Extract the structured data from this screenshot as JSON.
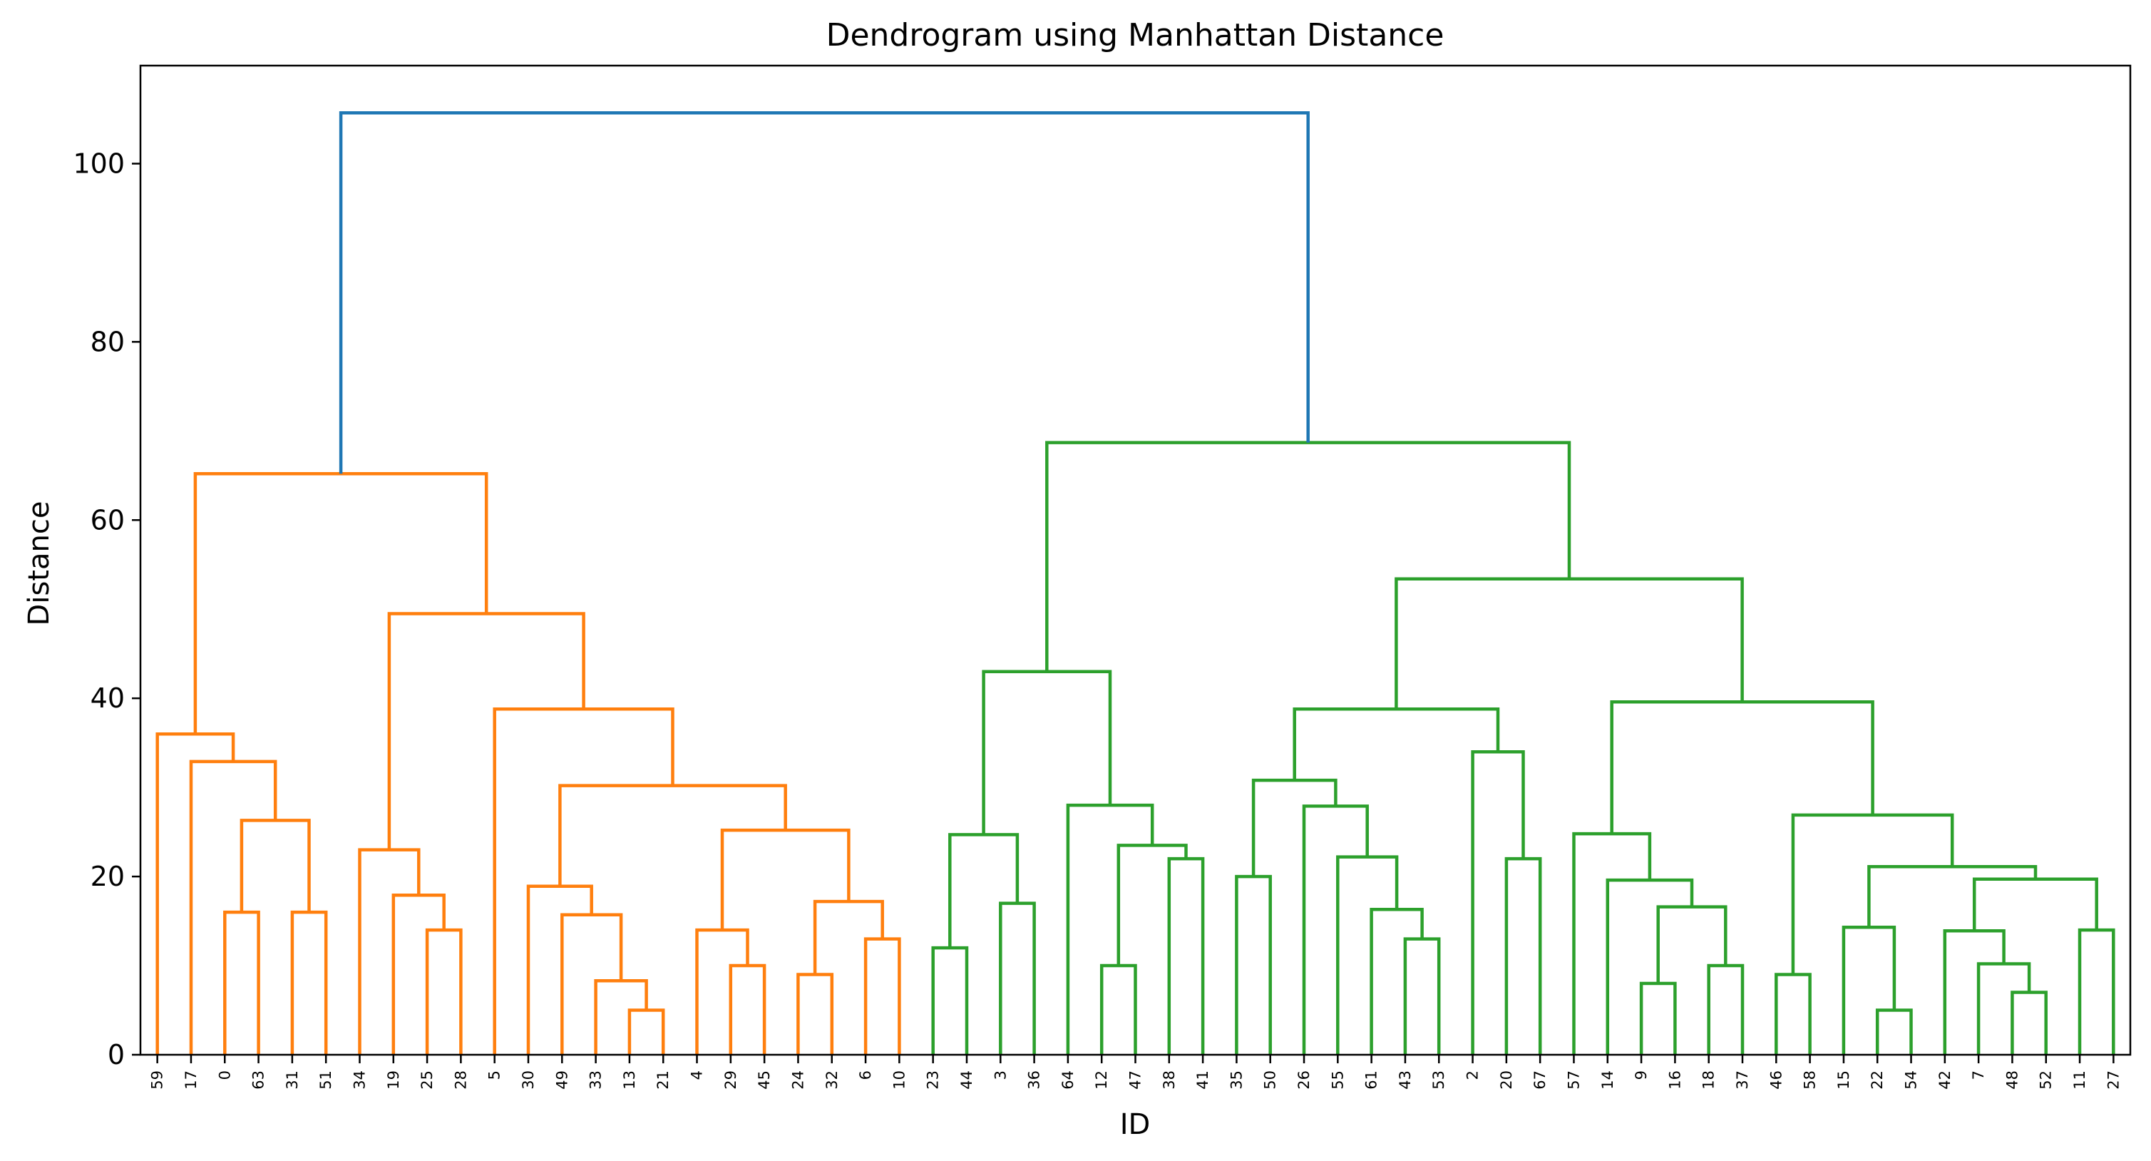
{
  "chart_data": {
    "type": "dendrogram",
    "title": "Dendrogram using Manhattan Distance",
    "xlabel": "ID",
    "ylabel": "Distance",
    "ylim": [
      0,
      111
    ],
    "yticks": [
      0,
      20,
      40,
      60,
      80,
      100
    ],
    "grid": false,
    "colors": {
      "cluster_1": "#ff7f0e",
      "cluster_2": "#2ca02c",
      "root": "#1f77b4"
    },
    "leaves": [
      "59",
      "17",
      "0",
      "63",
      "31",
      "51",
      "34",
      "19",
      "25",
      "28",
      "5",
      "30",
      "49",
      "33",
      "13",
      "21",
      "4",
      "29",
      "45",
      "24",
      "32",
      "6",
      "10",
      "23",
      "44",
      "3",
      "36",
      "64",
      "12",
      "47",
      "38",
      "41",
      "35",
      "50",
      "26",
      "55",
      "61",
      "43",
      "53",
      "2",
      "20",
      "67",
      "57",
      "14",
      "9",
      "16",
      "18",
      "37",
      "46",
      "58",
      "15",
      "22",
      "54",
      "42",
      "7",
      "48",
      "52",
      "11",
      "27"
    ],
    "merges": [
      {
        "id": "o1",
        "left": "0",
        "right": "63",
        "height": 16,
        "color": "cluster_1"
      },
      {
        "id": "o2",
        "left": "31",
        "right": "51",
        "height": 16,
        "color": "cluster_1"
      },
      {
        "id": "o3",
        "left": "o1",
        "right": "o2",
        "height": 26.3,
        "color": "cluster_1"
      },
      {
        "id": "o4",
        "left": "17",
        "right": "o3",
        "height": 32.9,
        "color": "cluster_1"
      },
      {
        "id": "o5",
        "left": "59",
        "right": "o4",
        "height": 36,
        "color": "cluster_1"
      },
      {
        "id": "o6",
        "left": "25",
        "right": "28",
        "height": 14,
        "color": "cluster_1"
      },
      {
        "id": "o7",
        "left": "19",
        "right": "o6",
        "height": 17.9,
        "color": "cluster_1"
      },
      {
        "id": "o8",
        "left": "34",
        "right": "o7",
        "height": 23,
        "color": "cluster_1"
      },
      {
        "id": "o9",
        "left": "13",
        "right": "21",
        "height": 5,
        "color": "cluster_1"
      },
      {
        "id": "o10",
        "left": "33",
        "right": "o9",
        "height": 8.3,
        "color": "cluster_1"
      },
      {
        "id": "o11",
        "left": "49",
        "right": "o10",
        "height": 15.7,
        "color": "cluster_1"
      },
      {
        "id": "o12",
        "left": "30",
        "right": "o11",
        "height": 18.9,
        "color": "cluster_1"
      },
      {
        "id": "o13",
        "left": "29",
        "right": "45",
        "height": 10,
        "color": "cluster_1"
      },
      {
        "id": "o14",
        "left": "4",
        "right": "o13",
        "height": 14,
        "color": "cluster_1"
      },
      {
        "id": "o15",
        "left": "24",
        "right": "32",
        "height": 9,
        "color": "cluster_1"
      },
      {
        "id": "o16",
        "left": "6",
        "right": "10",
        "height": 13,
        "color": "cluster_1"
      },
      {
        "id": "o17",
        "left": "o15",
        "right": "o16",
        "height": 17.2,
        "color": "cluster_1"
      },
      {
        "id": "o18",
        "left": "o14",
        "right": "o17",
        "height": 25.2,
        "color": "cluster_1"
      },
      {
        "id": "o19",
        "left": "o12",
        "right": "o18",
        "height": 30.2,
        "color": "cluster_1"
      },
      {
        "id": "o20",
        "left": "5",
        "right": "o19",
        "height": 38.8,
        "color": "cluster_1"
      },
      {
        "id": "o21",
        "left": "o8",
        "right": "o20",
        "height": 49.5,
        "color": "cluster_1"
      },
      {
        "id": "o22",
        "left": "o5",
        "right": "o21",
        "height": 65.2,
        "color": "cluster_1"
      },
      {
        "id": "g1",
        "left": "23",
        "right": "44",
        "height": 12,
        "color": "cluster_2"
      },
      {
        "id": "g2",
        "left": "3",
        "right": "36",
        "height": 17,
        "color": "cluster_2"
      },
      {
        "id": "g3",
        "left": "g1",
        "right": "g2",
        "height": 24.7,
        "color": "cluster_2"
      },
      {
        "id": "g4",
        "left": "12",
        "right": "47",
        "height": 10,
        "color": "cluster_2"
      },
      {
        "id": "g5",
        "left": "38",
        "right": "41",
        "height": 22,
        "color": "cluster_2"
      },
      {
        "id": "g6",
        "left": "g4",
        "right": "g5",
        "height": 23.5,
        "color": "cluster_2"
      },
      {
        "id": "g7",
        "left": "64",
        "right": "g6",
        "height": 28,
        "color": "cluster_2"
      },
      {
        "id": "g8",
        "left": "g3",
        "right": "g7",
        "height": 43,
        "color": "cluster_2"
      },
      {
        "id": "g9",
        "left": "35",
        "right": "50",
        "height": 20,
        "color": "cluster_2"
      },
      {
        "id": "g10",
        "left": "43",
        "right": "53",
        "height": 13,
        "color": "cluster_2"
      },
      {
        "id": "g11",
        "left": "61",
        "right": "g10",
        "height": 16.3,
        "color": "cluster_2"
      },
      {
        "id": "g12",
        "left": "55",
        "right": "g11",
        "height": 22.2,
        "color": "cluster_2"
      },
      {
        "id": "g13",
        "left": "26",
        "right": "g12",
        "height": 27.9,
        "color": "cluster_2"
      },
      {
        "id": "g14",
        "left": "g9",
        "right": "g13",
        "height": 30.8,
        "color": "cluster_2"
      },
      {
        "id": "g15",
        "left": "20",
        "right": "67",
        "height": 22,
        "color": "cluster_2"
      },
      {
        "id": "g16",
        "left": "2",
        "right": "g15",
        "height": 34,
        "color": "cluster_2"
      },
      {
        "id": "g17",
        "left": "g14",
        "right": "g16",
        "height": 38.8,
        "color": "cluster_2"
      },
      {
        "id": "g18",
        "left": "9",
        "right": "16",
        "height": 8,
        "color": "cluster_2"
      },
      {
        "id": "g19",
        "left": "18",
        "right": "37",
        "height": 10,
        "color": "cluster_2"
      },
      {
        "id": "g20",
        "left": "g18",
        "right": "g19",
        "height": 16.6,
        "color": "cluster_2"
      },
      {
        "id": "g21",
        "left": "14",
        "right": "g20",
        "height": 19.6,
        "color": "cluster_2"
      },
      {
        "id": "g22",
        "left": "57",
        "right": "g21",
        "height": 24.8,
        "color": "cluster_2"
      },
      {
        "id": "g23",
        "left": "46",
        "right": "58",
        "height": 9,
        "color": "cluster_2"
      },
      {
        "id": "g24",
        "left": "22",
        "right": "54",
        "height": 5,
        "color": "cluster_2"
      },
      {
        "id": "g25",
        "left": "15",
        "right": "g24",
        "height": 14.3,
        "color": "cluster_2"
      },
      {
        "id": "g26",
        "left": "48",
        "right": "52",
        "height": 7,
        "color": "cluster_2"
      },
      {
        "id": "g27",
        "left": "7",
        "right": "g26",
        "height": 10.2,
        "color": "cluster_2"
      },
      {
        "id": "g28",
        "left": "42",
        "right": "g27",
        "height": 13.9,
        "color": "cluster_2"
      },
      {
        "id": "g29",
        "left": "11",
        "right": "27",
        "height": 14,
        "color": "cluster_2"
      },
      {
        "id": "g30",
        "left": "g28",
        "right": "g29",
        "height": 19.7,
        "color": "cluster_2"
      },
      {
        "id": "g31",
        "left": "g25",
        "right": "g30",
        "height": 21.1,
        "color": "cluster_2"
      },
      {
        "id": "g32",
        "left": "g23",
        "right": "g31",
        "height": 26.9,
        "color": "cluster_2"
      },
      {
        "id": "g33",
        "left": "g22",
        "right": "g32",
        "height": 39.6,
        "color": "cluster_2"
      },
      {
        "id": "g34",
        "left": "g17",
        "right": "g33",
        "height": 53.4,
        "color": "cluster_2"
      },
      {
        "id": "g35",
        "left": "g8",
        "right": "g34",
        "height": 68.7,
        "color": "cluster_2"
      },
      {
        "id": "root",
        "left": "o22",
        "right": "g35",
        "height": 105.7,
        "color": "root"
      }
    ]
  }
}
